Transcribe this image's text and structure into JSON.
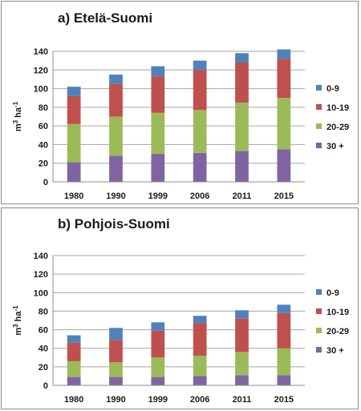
{
  "chart_data": [
    {
      "type": "bar",
      "stacked": true,
      "title": "a) Etelä-Suomi",
      "ylabel": "m³ ha⁻¹",
      "ylabel_parts": {
        "unit": "m",
        "unit_sup": "3",
        "ha": " ha",
        "ha_sup": "-1"
      },
      "categories": [
        "1980",
        "1990",
        "1999",
        "2006",
        "2011",
        "2015"
      ],
      "ylim": [
        0,
        140
      ],
      "yticks": [
        0,
        20,
        40,
        60,
        80,
        100,
        120,
        140
      ],
      "grid": true,
      "legend": "right",
      "series": [
        {
          "name": "30 +",
          "color": "#8064a2",
          "values": [
            21,
            28,
            30,
            31,
            33,
            35
          ]
        },
        {
          "name": "20-29",
          "color": "#9bbb59",
          "values": [
            41,
            42,
            44,
            46,
            52,
            55
          ]
        },
        {
          "name": "10-19",
          "color": "#c0504d",
          "values": [
            30,
            35,
            39,
            43,
            43,
            42
          ]
        },
        {
          "name": "0-9",
          "color": "#4f81bd",
          "values": [
            10,
            10,
            11,
            10,
            10,
            10
          ]
        }
      ]
    },
    {
      "type": "bar",
      "stacked": true,
      "title": "b) Pohjois-Suomi",
      "ylabel": "m³ ha⁻¹",
      "ylabel_parts": {
        "unit": "m",
        "unit_sup": "3",
        "ha": " ha",
        "ha_sup": "-1"
      },
      "categories": [
        "1980",
        "1990",
        "1999",
        "2006",
        "2011",
        "2015"
      ],
      "ylim": [
        0,
        140
      ],
      "yticks": [
        0,
        20,
        40,
        60,
        80,
        100,
        120,
        140
      ],
      "grid": true,
      "legend": "right",
      "series": [
        {
          "name": "30 +",
          "color": "#8064a2",
          "values": [
            9,
            9,
            9,
            10,
            11,
            11
          ]
        },
        {
          "name": "20-29",
          "color": "#9bbb59",
          "values": [
            17,
            16,
            21,
            22,
            25,
            29
          ]
        },
        {
          "name": "10-19",
          "color": "#c0504d",
          "values": [
            20,
            24,
            29,
            35,
            36,
            38
          ]
        },
        {
          "name": "0-9",
          "color": "#4f81bd",
          "values": [
            8,
            13,
            9,
            8,
            9,
            9
          ]
        }
      ]
    }
  ]
}
